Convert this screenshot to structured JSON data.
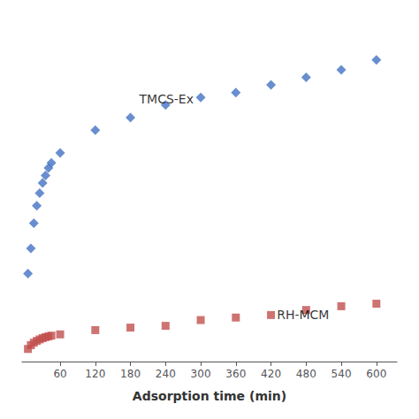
{
  "chart_data": {
    "type": "scatter",
    "xlabel": "Adsorption time (min)",
    "series": [
      {
        "name": "TMCS-Ex",
        "color": "#4472C4",
        "marker": "diamond",
        "x": [
          5,
          10,
          15,
          20,
          25,
          30,
          35,
          40,
          45,
          60,
          120,
          180,
          240,
          300,
          360,
          420,
          480,
          540,
          600
        ],
        "values": [
          3.5,
          4.5,
          5.5,
          6.2,
          6.7,
          7.1,
          7.4,
          7.7,
          7.9,
          8.3,
          9.2,
          9.7,
          10.2,
          10.5,
          10.7,
          11.0,
          11.3,
          11.6,
          12.0
        ]
      },
      {
        "name": "RH-MCM",
        "color": "#C0504D",
        "marker": "square",
        "x": [
          5,
          10,
          15,
          20,
          25,
          30,
          35,
          40,
          45,
          60,
          120,
          180,
          240,
          300,
          360,
          420,
          480,
          540,
          600
        ],
        "values": [
          0.5,
          0.65,
          0.75,
          0.82,
          0.88,
          0.93,
          0.97,
          1.0,
          1.03,
          1.08,
          1.25,
          1.35,
          1.42,
          1.65,
          1.75,
          1.85,
          2.05,
          2.2,
          2.3
        ]
      }
    ],
    "annotations": [
      {
        "text": "TMCS-Ex",
        "x": 195,
        "y": 10.2
      },
      {
        "text": "RH-MCM",
        "x": 430,
        "y": 1.6
      }
    ],
    "xlim": [
      -5,
      635
    ],
    "xticks": [
      60,
      120,
      180,
      240,
      300,
      360,
      420,
      480,
      540,
      600
    ],
    "ylim": [
      0,
      13.5
    ],
    "tick_labels": "x",
    "grid": false,
    "background_color": "#ffffff"
  }
}
